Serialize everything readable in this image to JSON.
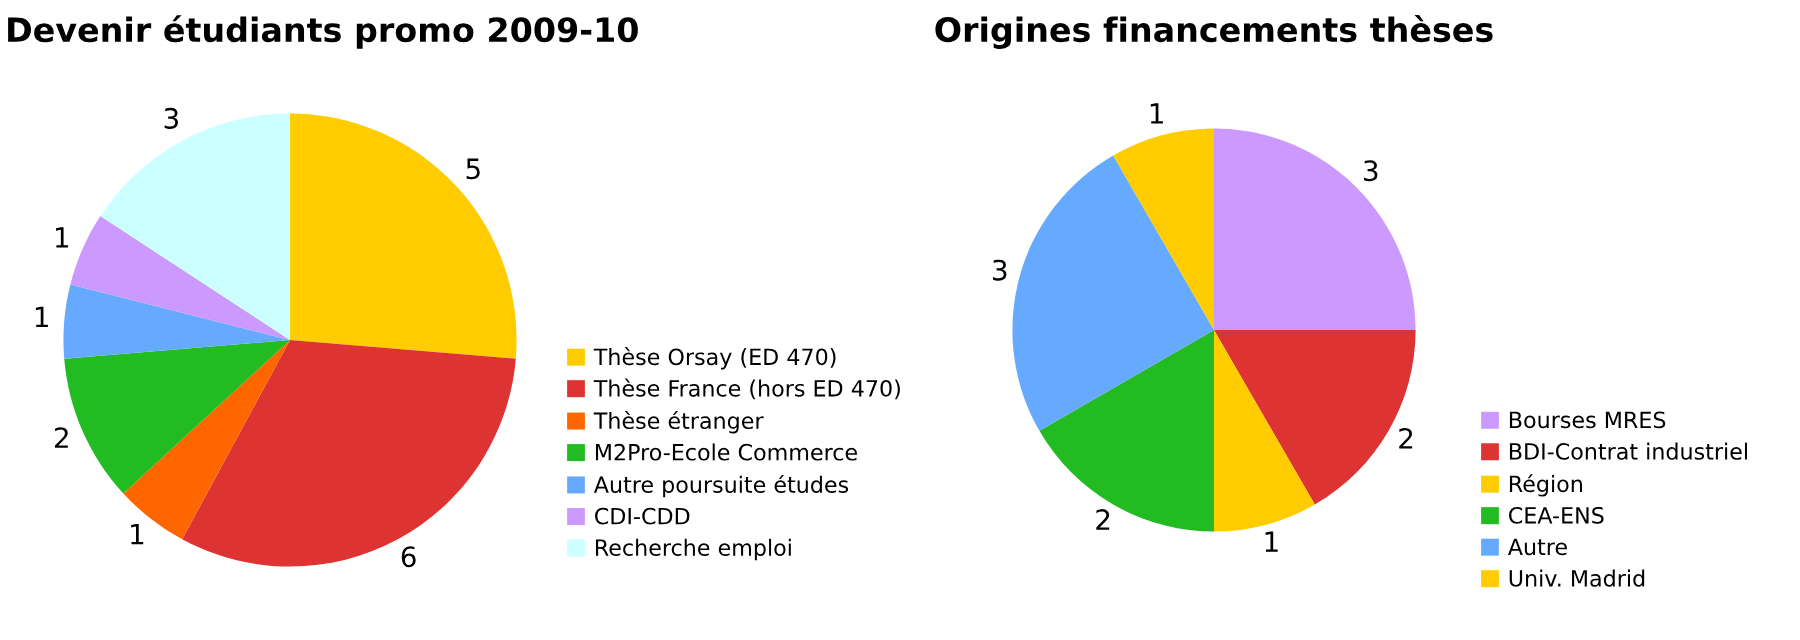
{
  "chart_data": [
    {
      "type": "pie",
      "title": "Devenir étudiants promo 2009-10",
      "categories": [
        "Thèse Orsay (ED 470)",
        "Thèse France (hors ED 470)",
        "Thèse étranger",
        "M2Pro-Ecole Commerce",
        "Autre poursuite études",
        "CDI-CDD",
        "Recherche emploi"
      ],
      "values": [
        5,
        6,
        1,
        2,
        1,
        1,
        3
      ],
      "colors": [
        "#ffcc00",
        "#dd3333",
        "#ff6600",
        "#22bb22",
        "#66aaff",
        "#cc99ff",
        "#ccffff"
      ],
      "data_labels": true,
      "legend": "right"
    },
    {
      "type": "pie",
      "title": "Origines financements thèses",
      "categories": [
        "Bourses MRES",
        "BDI-Contrat industriel",
        "Région",
        "CEA-ENS",
        "Autre",
        "Univ. Madrid"
      ],
      "values": [
        3,
        2,
        1,
        2,
        3,
        1
      ],
      "colors": [
        "#cc99ff",
        "#dd3333",
        "#ffcc00",
        "#22bb22",
        "#66aaff",
        "#ffcc00"
      ],
      "data_labels": true,
      "legend": "right"
    }
  ]
}
